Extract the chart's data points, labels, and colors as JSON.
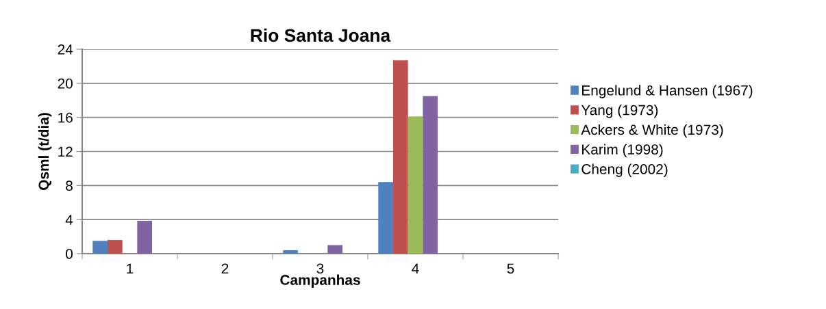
{
  "chart_data": {
    "type": "bar",
    "title": "Rio Santa Joana",
    "xlabel": "Campanhas",
    "ylabel": "Qsml (t/dia)",
    "categories": [
      "1",
      "2",
      "3",
      "4",
      "5"
    ],
    "series": [
      {
        "name": "Engelund & Hansen (1967)",
        "color": "#4f81bd",
        "values": [
          1.5,
          0,
          0.4,
          8.4,
          0
        ]
      },
      {
        "name": "Yang (1973)",
        "color": "#c0504d",
        "values": [
          1.6,
          0,
          0,
          22.7,
          0
        ]
      },
      {
        "name": "Ackers & White (1973)",
        "color": "#9bbb59",
        "values": [
          0,
          0,
          0,
          16.1,
          0
        ]
      },
      {
        "name": "Karim (1998)",
        "color": "#8064a2",
        "values": [
          3.85,
          0,
          1.0,
          18.5,
          0
        ]
      },
      {
        "name": "Cheng (2002)",
        "color": "#4bacc6",
        "values": [
          0,
          0,
          0,
          0,
          0
        ]
      }
    ],
    "ylim": [
      0,
      24
    ],
    "yticks": [
      0,
      4,
      8,
      12,
      16,
      20,
      24
    ],
    "grid": "y",
    "legend": "right"
  }
}
